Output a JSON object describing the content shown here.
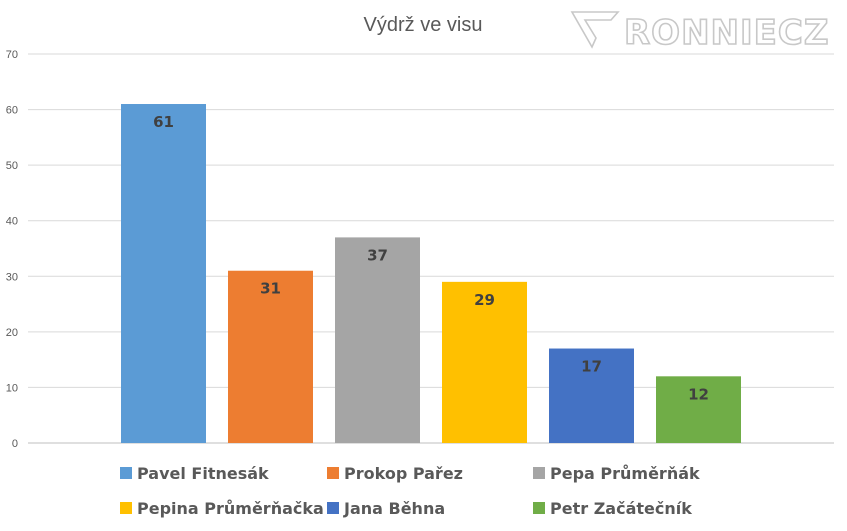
{
  "chart_data": {
    "type": "bar",
    "title": "Výdrž ve visu",
    "categories": [
      "Pavel Fitnesák",
      "Prokop Pařez",
      "Pepa Průměrňák",
      "Pepina Průměrňačka",
      "Jana Běhna",
      "Petr Začátečník"
    ],
    "values": [
      61,
      31,
      37,
      29,
      17,
      12
    ],
    "colors": [
      "#5b9bd5",
      "#ed7d31",
      "#a5a5a5",
      "#ffc000",
      "#4472c4",
      "#70ad47"
    ],
    "ylim": [
      0,
      70
    ],
    "yticks": [
      0,
      10,
      20,
      30,
      40,
      50,
      60,
      70
    ],
    "grid": true,
    "legend_position": "bottom",
    "data_labels": true
  },
  "watermark": {
    "text": "RONNIECZ"
  }
}
